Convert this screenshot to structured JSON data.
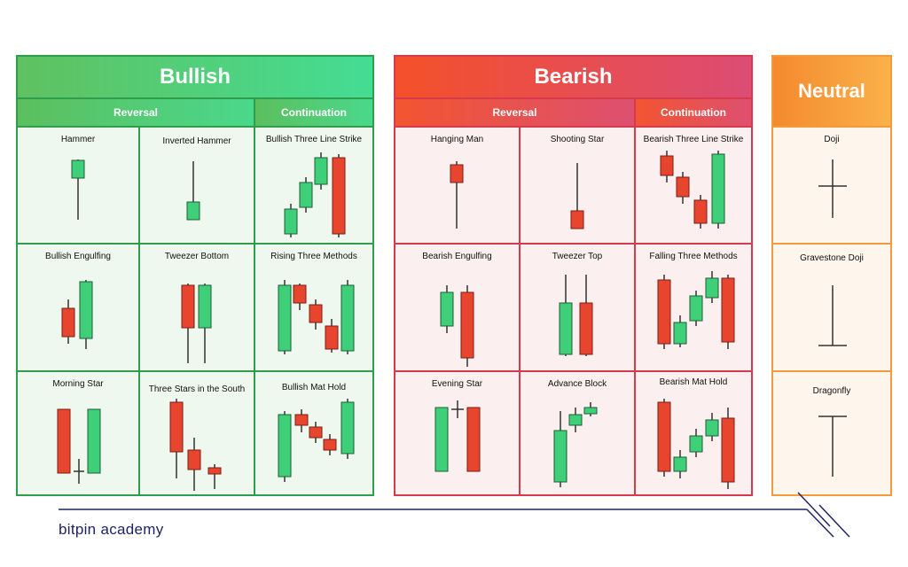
{
  "bullish": {
    "title": "Bullish",
    "reversal": "Reversal",
    "continuation": "Continuation",
    "cells": [
      "Hammer",
      "Inverted Hammer",
      "Bullish Three Line Strike",
      "Bullish Engulfing",
      "Tweezer Bottom",
      "Rising Three Methods",
      "Morning Star",
      "Three Stars in the South",
      "Bullish Mat Hold"
    ]
  },
  "bearish": {
    "title": "Bearish",
    "reversal": "Reversal",
    "continuation": "Continuation",
    "cells": [
      "Hanging Man",
      "Shooting Star",
      "Bearish Three Line Strike",
      "Bearish Engulfing",
      "Tweezer Top",
      "Falling Three Methods",
      "Evening Star",
      "Advance Block",
      "Bearish Mat Hold"
    ]
  },
  "neutral": {
    "title": "Neutral",
    "cells": [
      "Doji",
      "Gravestone Doji",
      "Dragonfly"
    ]
  },
  "brand": "bitpin academy",
  "colors": {
    "bull_green": "#3fcf78",
    "bear_red": "#e8452e",
    "bull_border": "#2e9e4c",
    "bear_border": "#d63a4c",
    "neutral_border": "#f39a3c",
    "brand_navy": "#1e2366"
  }
}
